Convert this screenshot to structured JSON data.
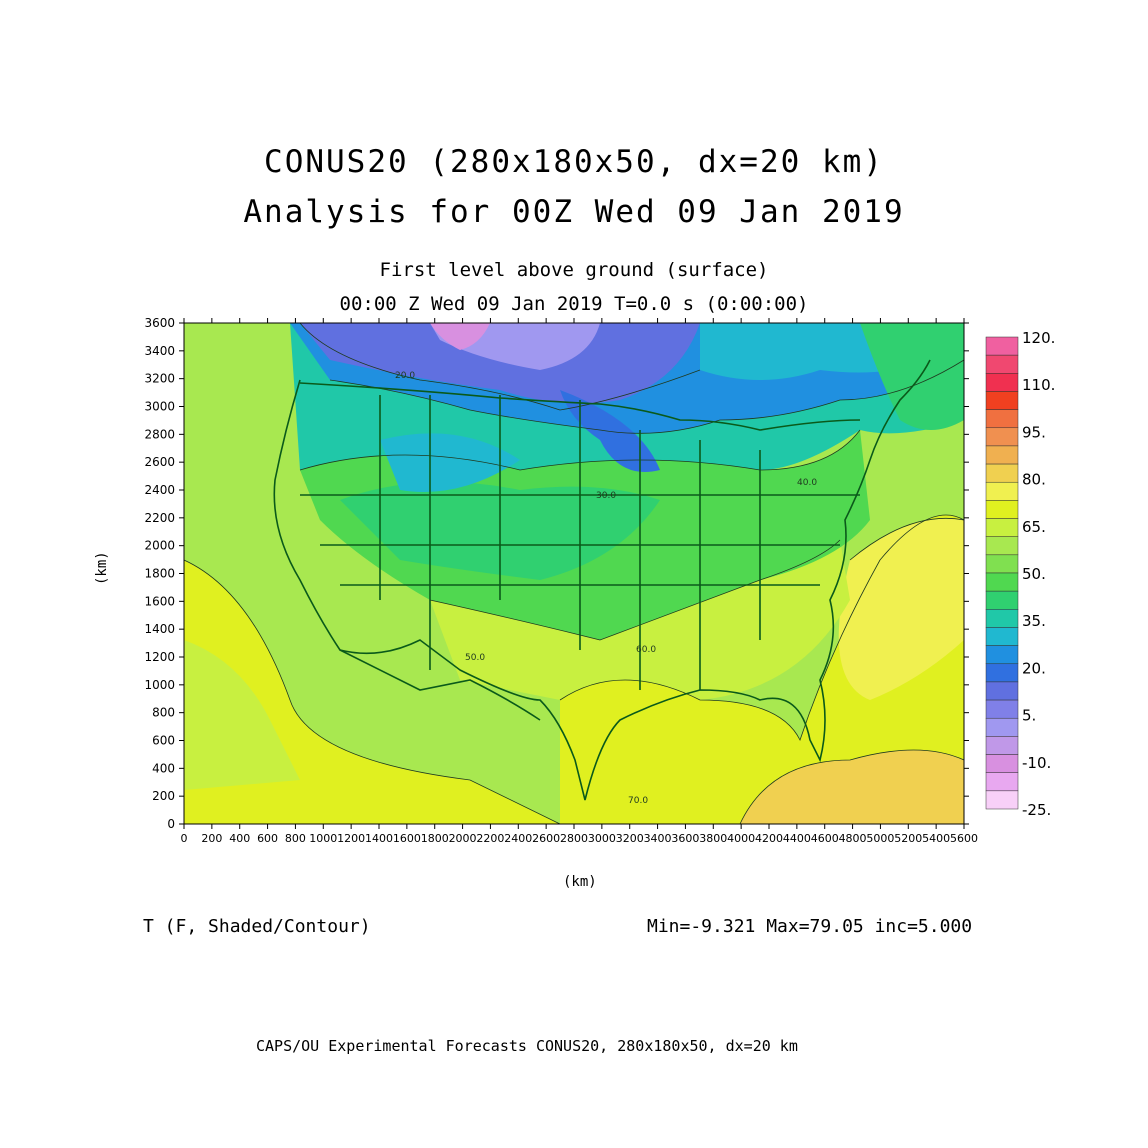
{
  "header": {
    "title_line1": "CONUS20 (280x180x50, dx=20 km)",
    "title_line2": "Analysis for 00Z Wed 09 Jan 2019",
    "level": "First level above ground (surface)",
    "time_line": "00:00 Z Wed 09 Jan 2019    T=0.0 s (0:00:00)"
  },
  "axes": {
    "y_label": "(km)",
    "x_label": "(km)",
    "y_ticks": [
      "0",
      "200",
      "400",
      "600",
      "800",
      "1000",
      "1200",
      "1400",
      "1600",
      "1800",
      "2000",
      "2200",
      "2400",
      "2600",
      "2800",
      "3000",
      "3200",
      "3400",
      "3600"
    ],
    "x_ticks": [
      "0",
      "200",
      "400",
      "600",
      "800",
      "1000",
      "1200",
      "1400",
      "1600",
      "1800",
      "2000",
      "2200",
      "2400",
      "2600",
      "2800",
      "3000",
      "3200",
      "3400",
      "3600",
      "3800",
      "4000",
      "4200",
      "4400",
      "4600",
      "4800",
      "5000",
      "5200",
      "5400",
      "5600"
    ],
    "x_range": [
      0,
      5600
    ],
    "y_range": [
      0,
      3600
    ]
  },
  "colorbar": {
    "labels": [
      "120.",
      "110.",
      "95.",
      "80.",
      "65.",
      "50.",
      "35.",
      "20.",
      "5.",
      "-10.",
      "-25."
    ],
    "colors_top_to_bottom": [
      "#f060a0",
      "#f04870",
      "#f03050",
      "#f04020",
      "#f07040",
      "#f09050",
      "#f0b050",
      "#f0d050",
      "#f0f050",
      "#e0f020",
      "#c8f040",
      "#a8e850",
      "#80e050",
      "#50d850",
      "#30d070",
      "#20c8a8",
      "#20b8d0",
      "#2090e0",
      "#3070e0",
      "#6070e0",
      "#8080e8",
      "#a098f0",
      "#c098e8",
      "#d890e0",
      "#e8a8f0",
      "#f8d0f8"
    ]
  },
  "contour_labels": [
    "20.0",
    "30.0",
    "40.0",
    "50.0",
    "60.0",
    "70.0"
  ],
  "footer": {
    "variable": "T (F, Shaded/Contour)",
    "stats": "Min=-9.321  Max=79.05  inc=5.000",
    "credit": "CAPS/OU Experimental Forecasts   CONUS20, 280x180x50, dx=20 km"
  }
}
